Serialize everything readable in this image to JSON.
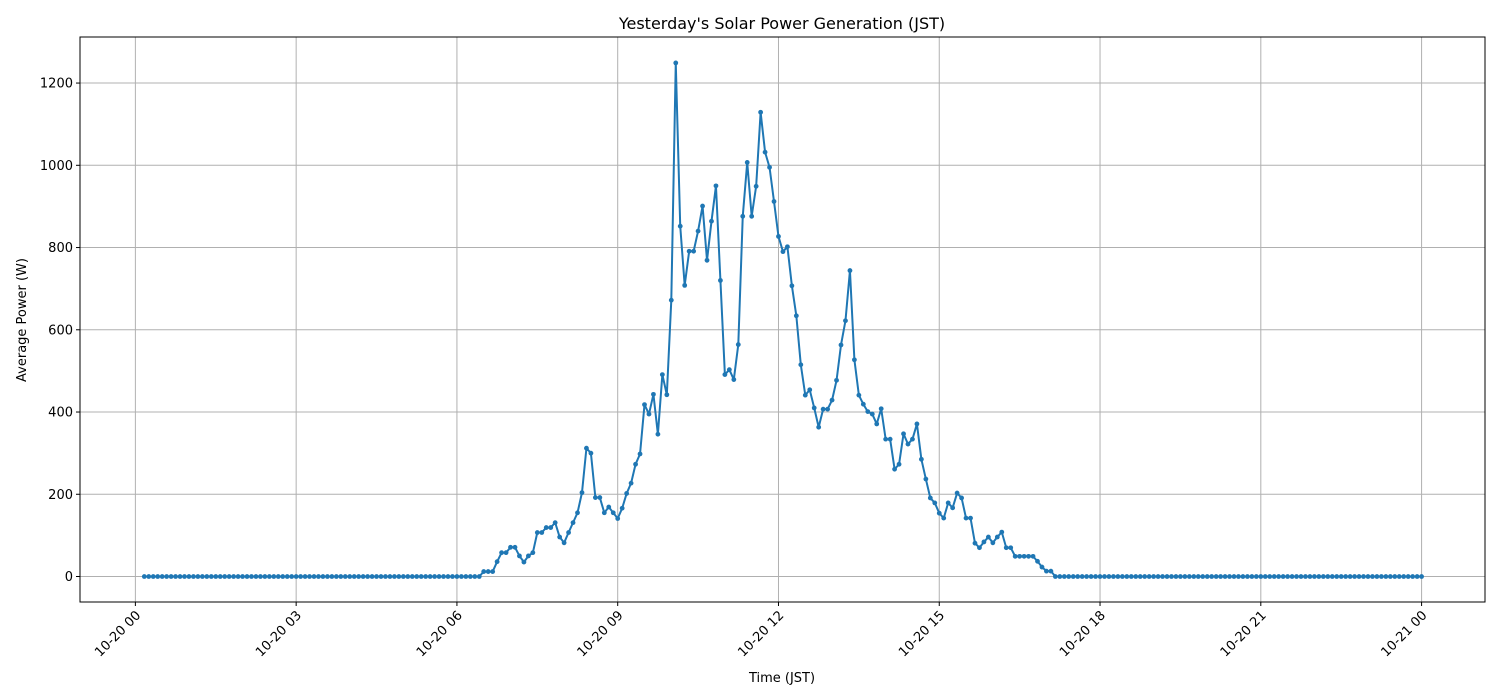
{
  "chart_data": {
    "type": "line",
    "title": "Yesterday's Solar Power Generation (JST)",
    "xlabel": "Time (JST)",
    "ylabel": "Average Power (W)",
    "grid": true,
    "color": "#1f77b4",
    "marker": "circle",
    "x_ticks": [
      "10-20 00",
      "10-20 03",
      "10-20 06",
      "10-20 09",
      "10-20 12",
      "10-20 15",
      "10-20 18",
      "10-20 21",
      "10-21 00"
    ],
    "y_ticks": [
      0,
      200,
      400,
      600,
      800,
      1000,
      1200
    ],
    "ylim": [
      -62,
      1312
    ],
    "xlim": [
      "10-19 22:58",
      "10-21 01:11"
    ],
    "x": [
      "10-20 00:10",
      "10-20 00:15",
      "10-20 00:20",
      "10-20 00:25",
      "10-20 00:30",
      "10-20 00:35",
      "10-20 00:40",
      "10-20 00:45",
      "10-20 00:50",
      "10-20 00:55",
      "10-20 01:00",
      "10-20 01:05",
      "10-20 01:10",
      "10-20 01:15",
      "10-20 01:20",
      "10-20 01:25",
      "10-20 01:30",
      "10-20 01:35",
      "10-20 01:40",
      "10-20 01:45",
      "10-20 01:50",
      "10-20 01:55",
      "10-20 02:00",
      "10-20 02:05",
      "10-20 02:10",
      "10-20 02:15",
      "10-20 02:20",
      "10-20 02:25",
      "10-20 02:30",
      "10-20 02:35",
      "10-20 02:40",
      "10-20 02:45",
      "10-20 02:50",
      "10-20 02:55",
      "10-20 03:00",
      "10-20 03:05",
      "10-20 03:10",
      "10-20 03:15",
      "10-20 03:20",
      "10-20 03:25",
      "10-20 03:30",
      "10-20 03:35",
      "10-20 03:40",
      "10-20 03:45",
      "10-20 03:50",
      "10-20 03:55",
      "10-20 04:00",
      "10-20 04:05",
      "10-20 04:10",
      "10-20 04:15",
      "10-20 04:20",
      "10-20 04:25",
      "10-20 04:30",
      "10-20 04:35",
      "10-20 04:40",
      "10-20 04:45",
      "10-20 04:50",
      "10-20 04:55",
      "10-20 05:00",
      "10-20 05:05",
      "10-20 05:10",
      "10-20 05:15",
      "10-20 05:20",
      "10-20 05:25",
      "10-20 05:30",
      "10-20 05:35",
      "10-20 05:40",
      "10-20 05:45",
      "10-20 05:50",
      "10-20 05:55",
      "10-20 06:00",
      "10-20 06:05",
      "10-20 06:10",
      "10-20 06:15",
      "10-20 06:20",
      "10-20 06:25",
      "10-20 06:30",
      "10-20 06:35",
      "10-20 06:40",
      "10-20 06:45",
      "10-20 06:50",
      "10-20 06:55",
      "10-20 07:00",
      "10-20 07:05",
      "10-20 07:10",
      "10-20 07:15",
      "10-20 07:20",
      "10-20 07:25",
      "10-20 07:30",
      "10-20 07:35",
      "10-20 07:40",
      "10-20 07:45",
      "10-20 07:50",
      "10-20 07:55",
      "10-20 08:00",
      "10-20 08:05",
      "10-20 08:10",
      "10-20 08:15",
      "10-20 08:20",
      "10-20 08:25",
      "10-20 08:30",
      "10-20 08:35",
      "10-20 08:40",
      "10-20 08:45",
      "10-20 08:50",
      "10-20 08:55",
      "10-20 09:00",
      "10-20 09:05",
      "10-20 09:10",
      "10-20 09:15",
      "10-20 09:20",
      "10-20 09:25",
      "10-20 09:30",
      "10-20 09:35",
      "10-20 09:40",
      "10-20 09:45",
      "10-20 09:50",
      "10-20 09:55",
      "10-20 10:00",
      "10-20 10:05",
      "10-20 10:10",
      "10-20 10:15",
      "10-20 10:20",
      "10-20 10:25",
      "10-20 10:30",
      "10-20 10:35",
      "10-20 10:40",
      "10-20 10:45",
      "10-20 10:50",
      "10-20 10:55",
      "10-20 11:00",
      "10-20 11:05",
      "10-20 11:10",
      "10-20 11:15",
      "10-20 11:20",
      "10-20 11:25",
      "10-20 11:30",
      "10-20 11:35",
      "10-20 11:40",
      "10-20 11:45",
      "10-20 11:50",
      "10-20 11:55",
      "10-20 12:00",
      "10-20 12:05",
      "10-20 12:10",
      "10-20 12:15",
      "10-20 12:20",
      "10-20 12:25",
      "10-20 12:30",
      "10-20 12:35",
      "10-20 12:40",
      "10-20 12:45",
      "10-20 12:50",
      "10-20 12:55",
      "10-20 13:00",
      "10-20 13:05",
      "10-20 13:10",
      "10-20 13:15",
      "10-20 13:20",
      "10-20 13:25",
      "10-20 13:30",
      "10-20 13:35",
      "10-20 13:40",
      "10-20 13:45",
      "10-20 13:50",
      "10-20 13:55",
      "10-20 14:00",
      "10-20 14:05",
      "10-20 14:10",
      "10-20 14:15",
      "10-20 14:20",
      "10-20 14:25",
      "10-20 14:30",
      "10-20 14:35",
      "10-20 14:40",
      "10-20 14:45",
      "10-20 14:50",
      "10-20 14:55",
      "10-20 15:00",
      "10-20 15:05",
      "10-20 15:10",
      "10-20 15:15",
      "10-20 15:20",
      "10-20 15:25",
      "10-20 15:30",
      "10-20 15:35",
      "10-20 15:40",
      "10-20 15:45",
      "10-20 15:50",
      "10-20 15:55",
      "10-20 16:00",
      "10-20 16:05",
      "10-20 16:10",
      "10-20 16:15",
      "10-20 16:20",
      "10-20 16:25",
      "10-20 16:30",
      "10-20 16:35",
      "10-20 16:40",
      "10-20 16:45",
      "10-20 16:50",
      "10-20 16:55",
      "10-20 17:00",
      "10-20 17:05",
      "10-20 17:10",
      "10-20 17:15",
      "10-20 17:20",
      "10-20 17:25",
      "10-20 17:30",
      "10-20 17:35",
      "10-20 17:40",
      "10-20 17:45",
      "10-20 17:50",
      "10-20 17:55",
      "10-20 18:00",
      "10-20 18:05",
      "10-20 18:10",
      "10-20 18:15",
      "10-20 18:20",
      "10-20 18:25",
      "10-20 18:30",
      "10-20 18:35",
      "10-20 18:40",
      "10-20 18:45",
      "10-20 18:50",
      "10-20 18:55",
      "10-20 19:00",
      "10-20 19:05",
      "10-20 19:10",
      "10-20 19:15",
      "10-20 19:20",
      "10-20 19:25",
      "10-20 19:30",
      "10-20 19:35",
      "10-20 19:40",
      "10-20 19:45",
      "10-20 19:50",
      "10-20 19:55",
      "10-20 20:00",
      "10-20 20:05",
      "10-20 20:10",
      "10-20 20:15",
      "10-20 20:20",
      "10-20 20:25",
      "10-20 20:30",
      "10-20 20:35",
      "10-20 20:40",
      "10-20 20:45",
      "10-20 20:50",
      "10-20 20:55",
      "10-20 21:00",
      "10-20 21:05",
      "10-20 21:10",
      "10-20 21:15",
      "10-20 21:20",
      "10-20 21:25",
      "10-20 21:30",
      "10-20 21:35",
      "10-20 21:40",
      "10-20 21:45",
      "10-20 21:50",
      "10-20 21:55",
      "10-20 22:00",
      "10-20 22:05",
      "10-20 22:10",
      "10-20 22:15",
      "10-20 22:20",
      "10-20 22:25",
      "10-20 22:30",
      "10-20 22:35",
      "10-20 22:40",
      "10-20 22:45",
      "10-20 22:50",
      "10-20 22:55",
      "10-20 23:00",
      "10-20 23:05",
      "10-20 23:10",
      "10-20 23:15",
      "10-20 23:20",
      "10-20 23:25",
      "10-20 23:30",
      "10-20 23:35",
      "10-20 23:40",
      "10-20 23:45",
      "10-20 23:50",
      "10-20 23:55",
      "10-21 00:00"
    ],
    "values": [
      0,
      0,
      0,
      0,
      0,
      0,
      0,
      0,
      0,
      0,
      0,
      0,
      0,
      0,
      0,
      0,
      0,
      0,
      0,
      0,
      0,
      0,
      0,
      0,
      0,
      0,
      0,
      0,
      0,
      0,
      0,
      0,
      0,
      0,
      0,
      0,
      0,
      0,
      0,
      0,
      0,
      0,
      0,
      0,
      0,
      0,
      0,
      0,
      0,
      0,
      0,
      0,
      0,
      0,
      0,
      0,
      0,
      0,
      0,
      0,
      0,
      0,
      0,
      0,
      0,
      0,
      0,
      0,
      0,
      0,
      0,
      0,
      0,
      0,
      0,
      0,
      12,
      12,
      12,
      36,
      58,
      58,
      71,
      71,
      50,
      35,
      50,
      58,
      107,
      107,
      119,
      119,
      131,
      96,
      82,
      107,
      131,
      155,
      204,
      312,
      300,
      192,
      192,
      155,
      169,
      155,
      141,
      166,
      202,
      227,
      273,
      298,
      418,
      395,
      443,
      346,
      491,
      442,
      672,
      1249,
      852,
      708,
      791,
      791,
      840,
      901,
      769,
      864,
      950,
      720,
      491,
      503,
      479,
      564,
      876,
      1007,
      876,
      949,
      1129,
      1032,
      995,
      912,
      827,
      790,
      802,
      707,
      634,
      515,
      441,
      454,
      410,
      363,
      407,
      407,
      429,
      477,
      563,
      622,
      744,
      527,
      441,
      419,
      401,
      395,
      371,
      408,
      334,
      334,
      261,
      273,
      347,
      322,
      334,
      371,
      285,
      237,
      191,
      179,
      154,
      142,
      179,
      167,
      203,
      191,
      142,
      142,
      81,
      70,
      84,
      96,
      82,
      96,
      108,
      70,
      70,
      49,
      49,
      49,
      49,
      49,
      37,
      23,
      13,
      13,
      0,
      0,
      0,
      0,
      0,
      0,
      0,
      0,
      0,
      0,
      0,
      0,
      0,
      0,
      0,
      0,
      0,
      0,
      0,
      0,
      0,
      0,
      0,
      0,
      0,
      0,
      0,
      0,
      0,
      0,
      0,
      0,
      0,
      0,
      0,
      0,
      0,
      0,
      0,
      0,
      0,
      0,
      0,
      0,
      0,
      0,
      0,
      0,
      0,
      0,
      0,
      0,
      0,
      0,
      0,
      0,
      0,
      0,
      0,
      0,
      0,
      0,
      0,
      0,
      0,
      0,
      0,
      0,
      0,
      0,
      0,
      0,
      0,
      0,
      0,
      0,
      0,
      0,
      0,
      0,
      0,
      0,
      0
    ]
  }
}
